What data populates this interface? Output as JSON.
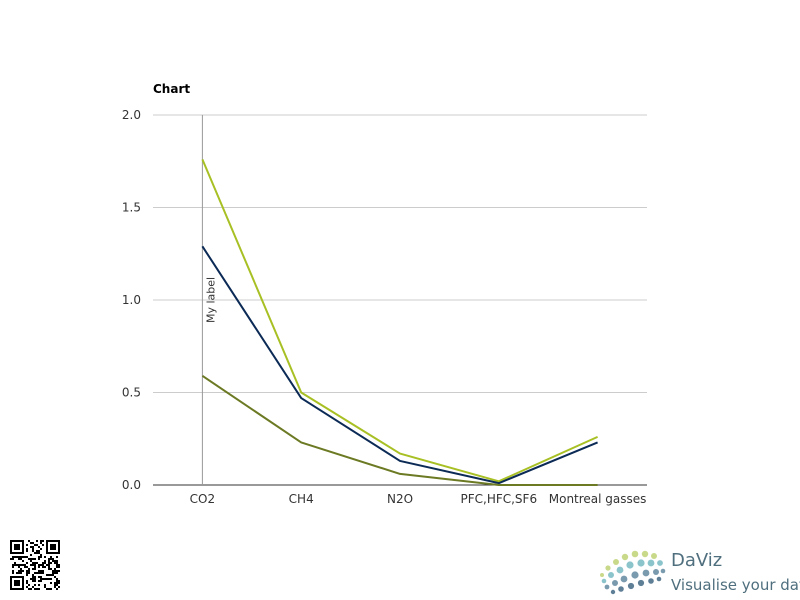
{
  "chart_data": {
    "type": "line",
    "title": "Chart",
    "categories": [
      "CO2",
      "CH4",
      "N2O",
      "PFC,HFC,SF6",
      "Montreal gasses"
    ],
    "ylim": [
      0,
      2.0
    ],
    "yticks": [
      "0.0",
      "0.5",
      "1.0",
      "1.5",
      "2.0"
    ],
    "grid": true,
    "series": [
      {
        "color": "#a8c024",
        "values": [
          1.76,
          0.5,
          0.17,
          0.02,
          0.26
        ]
      },
      {
        "color": "#0b2a55",
        "values": [
          1.29,
          0.47,
          0.13,
          0.01,
          0.23
        ]
      },
      {
        "color": "#6b7a23",
        "values": [
          0.59,
          0.23,
          0.06,
          0.0,
          0.0
        ]
      }
    ],
    "annotation": {
      "category": "CO2",
      "label": "My label"
    }
  },
  "branding": {
    "name": "DaViz",
    "tagline": "Visualise your data",
    "logo_icon": "daviz-dots-logo",
    "qr_icon": "qr-code"
  }
}
